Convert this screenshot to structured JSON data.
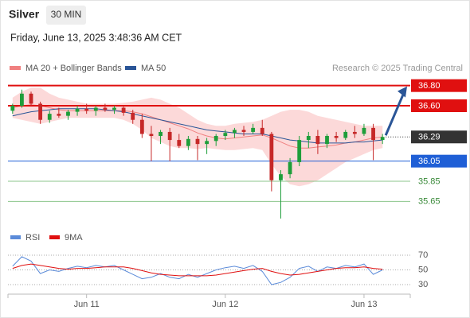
{
  "chart_data": [
    {
      "type": "candlestick",
      "title": "Silver",
      "subtitle": "30 MIN",
      "date": "Friday, June 13, 2025 3:48:36 AM CET",
      "source": "Research © 2025 Trading Central",
      "categories": [
        null,
        null,
        null,
        null,
        null,
        null,
        null,
        null,
        "Jun 11",
        null,
        null,
        null,
        null,
        null,
        null,
        null,
        null,
        null,
        null,
        null,
        null,
        null,
        null,
        "Jun 12",
        null,
        null,
        null,
        null,
        null,
        null,
        null,
        null,
        null,
        null,
        null,
        null,
        null,
        null,
        "Jun 13",
        null,
        null
      ],
      "xlim": [
        -0.5,
        43
      ],
      "ylim": [
        35.4,
        36.9
      ],
      "up_color": "#1e9e3a",
      "down_color": "#c62828",
      "open": [
        36.55,
        36.6,
        36.72,
        36.62,
        36.46,
        36.52,
        36.5,
        36.54,
        36.57,
        36.55,
        36.58,
        36.56,
        36.58,
        36.53,
        36.46,
        36.32,
        36.3,
        36.34,
        36.26,
        36.2,
        36.27,
        36.22,
        36.25,
        36.3,
        36.33,
        36.36,
        36.34,
        36.38,
        36.32,
        35.86,
        35.92,
        36.04,
        36.26,
        36.3,
        36.22,
        36.3,
        36.28,
        36.34,
        36.32,
        36.38,
        36.26
      ],
      "high": [
        36.62,
        36.76,
        36.74,
        36.64,
        36.55,
        36.58,
        36.56,
        36.6,
        36.62,
        36.6,
        36.62,
        36.6,
        36.6,
        36.56,
        36.52,
        36.4,
        36.36,
        36.38,
        36.32,
        36.3,
        36.3,
        36.28,
        36.32,
        36.36,
        36.38,
        36.4,
        36.42,
        36.46,
        36.34,
        35.96,
        36.08,
        36.3,
        36.34,
        36.36,
        36.32,
        36.34,
        36.36,
        36.4,
        36.42,
        36.42,
        36.32
      ],
      "low": [
        36.52,
        36.58,
        36.6,
        36.42,
        36.43,
        36.48,
        36.46,
        36.5,
        36.52,
        36.5,
        36.54,
        36.52,
        36.5,
        36.42,
        36.28,
        36.05,
        36.22,
        36.05,
        36.18,
        36.16,
        36.06,
        36.12,
        36.2,
        36.26,
        36.28,
        36.3,
        36.32,
        36.3,
        35.75,
        35.48,
        35.88,
        36.0,
        36.18,
        36.12,
        36.18,
        36.24,
        36.26,
        36.28,
        36.3,
        36.06,
        36.22
      ],
      "close": [
        36.6,
        36.72,
        36.62,
        36.46,
        36.52,
        36.5,
        36.54,
        36.57,
        36.55,
        36.58,
        36.56,
        36.58,
        36.53,
        36.46,
        36.32,
        36.3,
        36.34,
        36.26,
        36.2,
        36.27,
        36.22,
        36.25,
        36.3,
        36.33,
        36.36,
        36.34,
        36.38,
        36.32,
        35.86,
        35.92,
        36.04,
        36.26,
        36.3,
        36.22,
        36.3,
        36.28,
        36.34,
        36.32,
        36.38,
        36.26,
        36.29
      ],
      "series": [
        {
          "name": "MA 20 + Bollinger Bands",
          "color": "#f08080",
          "band_color": "#fbd0d0",
          "values": [
            36.58,
            36.6,
            36.61,
            36.6,
            36.58,
            36.56,
            36.55,
            36.55,
            36.55,
            36.55,
            36.55,
            36.55,
            36.55,
            36.54,
            36.52,
            36.49,
            36.46,
            36.43,
            36.4,
            36.37,
            36.33,
            36.3,
            36.28,
            36.27,
            36.28,
            36.29,
            36.3,
            36.31,
            36.28,
            36.24,
            36.2,
            36.18,
            36.18,
            36.19,
            36.2,
            36.21,
            36.23,
            36.24,
            36.26,
            36.28,
            36.29
          ],
          "upper": [
            36.68,
            36.74,
            36.78,
            36.78,
            36.72,
            36.68,
            36.66,
            36.64,
            36.62,
            36.62,
            36.62,
            36.62,
            36.63,
            36.64,
            36.66,
            36.68,
            36.66,
            36.62,
            36.58,
            36.52,
            36.46,
            36.42,
            36.4,
            36.4,
            36.42,
            36.43,
            36.44,
            36.46,
            36.5,
            36.54,
            36.56,
            36.56,
            36.54,
            36.5,
            36.48,
            36.46,
            36.44,
            36.42,
            36.4,
            36.4,
            36.4
          ],
          "lower": [
            36.48,
            36.46,
            36.44,
            36.42,
            36.44,
            36.46,
            36.48,
            36.48,
            36.48,
            36.48,
            36.48,
            36.48,
            36.46,
            36.42,
            36.36,
            36.28,
            36.24,
            36.2,
            36.18,
            36.18,
            36.17,
            36.18,
            36.17,
            36.16,
            36.16,
            36.17,
            36.18,
            36.16,
            36.02,
            35.9,
            35.82,
            35.8,
            35.82,
            35.86,
            35.92,
            35.98,
            36.04,
            36.08,
            36.12,
            36.16,
            36.18
          ]
        },
        {
          "name": "MA 50",
          "color": "#2a5597",
          "values": [
            36.5,
            36.52,
            36.54,
            36.55,
            36.56,
            36.57,
            36.57,
            36.57,
            36.57,
            36.57,
            36.56,
            36.55,
            36.54,
            36.52,
            36.5,
            36.48,
            36.46,
            36.44,
            36.42,
            36.4,
            36.38,
            36.36,
            36.35,
            36.34,
            36.33,
            36.32,
            36.32,
            36.32,
            36.3,
            36.28,
            36.26,
            36.25,
            36.24,
            36.23,
            36.23,
            36.23,
            36.23,
            36.24,
            36.24,
            36.25,
            36.26
          ]
        }
      ],
      "levels": [
        {
          "value": 36.8,
          "label": "36.80",
          "color": "#e01010",
          "boxed": true
        },
        {
          "value": 36.6,
          "label": "36.60",
          "color": "#e01010",
          "boxed": true
        },
        {
          "value": 36.29,
          "color": "#333333",
          "boxed": true,
          "current": true
        },
        {
          "value": 36.05,
          "color": "#1f5fd6",
          "boxed": true
        },
        {
          "value": 35.85,
          "color": "#8cc68c",
          "boxed": false
        },
        {
          "value": 35.65,
          "color": "#8cc68c",
          "boxed": false
        }
      ],
      "arrow_color": "#2a5597"
    },
    {
      "type": "line",
      "xlim": [
        -0.5,
        43
      ],
      "ylim": [
        20,
        80
      ],
      "yticks": [
        30,
        50,
        70
      ],
      "series": [
        {
          "name": "RSI",
          "color": "#5b8bd9",
          "values": [
            55,
            68,
            62,
            45,
            50,
            48,
            52,
            55,
            53,
            56,
            54,
            56,
            50,
            44,
            38,
            40,
            45,
            40,
            38,
            44,
            40,
            45,
            50,
            53,
            55,
            52,
            56,
            48,
            30,
            33,
            40,
            52,
            55,
            48,
            54,
            52,
            56,
            54,
            58,
            44,
            50
          ]
        },
        {
          "name": "9MA",
          "color": "#e01010",
          "values": [
            52,
            56,
            58,
            56,
            54,
            52,
            51,
            52,
            52,
            53,
            54,
            54,
            54,
            52,
            49,
            46,
            44,
            43,
            42,
            42,
            42,
            42,
            43,
            45,
            47,
            49,
            51,
            52,
            48,
            45,
            43,
            44,
            46,
            48,
            50,
            52,
            53,
            53,
            54,
            52,
            51
          ]
        }
      ]
    }
  ]
}
